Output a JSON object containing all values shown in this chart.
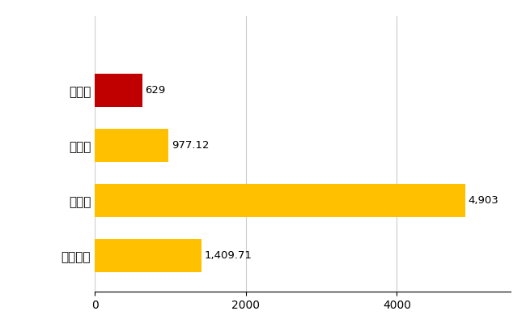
{
  "categories": [
    "全国平均",
    "県最大",
    "県平均",
    "山県市"
  ],
  "values": [
    1409.71,
    4903,
    977.12,
    629
  ],
  "bar_colors": [
    "#FFC000",
    "#FFC000",
    "#FFC000",
    "#C00000"
  ],
  "value_labels": [
    "1,409.71",
    "4,903",
    "977.12",
    "629"
  ],
  "xlim": [
    0,
    5500
  ],
  "xticks": [
    0,
    2000,
    4000
  ],
  "background_color": "#FFFFFF",
  "grid_color": "#CCCCCC",
  "bar_height": 0.6,
  "label_fontsize": 11,
  "tick_fontsize": 10,
  "value_fontsize": 9.5
}
